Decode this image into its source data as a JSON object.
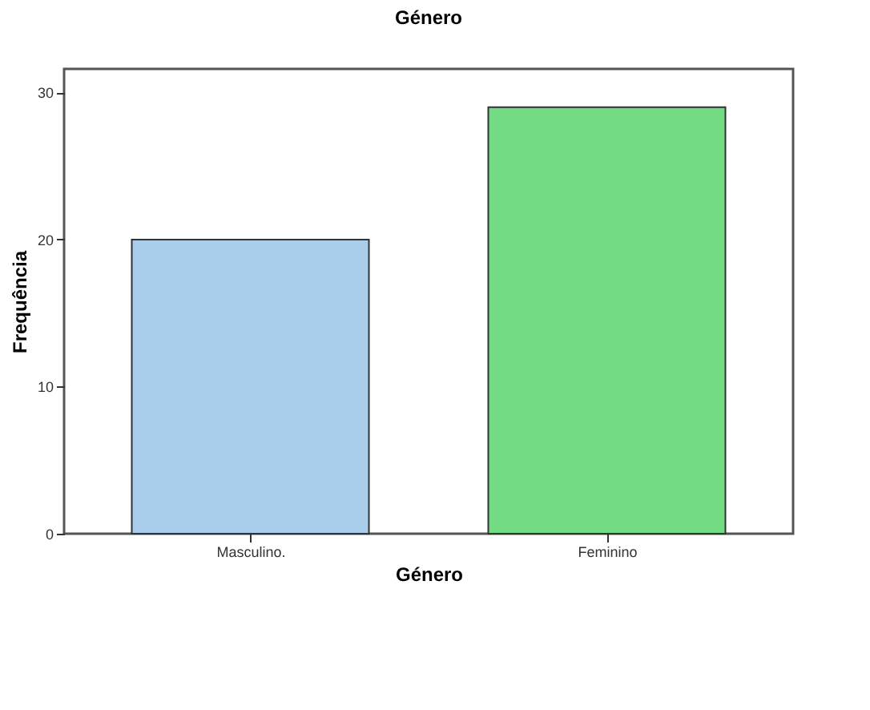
{
  "chart_data": {
    "type": "bar",
    "title": "Género",
    "xlabel": "Género",
    "ylabel": "Frequência",
    "categories": [
      "Masculino.",
      "Feminino"
    ],
    "values": [
      20,
      29
    ],
    "colors": [
      "#abcdec",
      "#72db84"
    ],
    "ylim": [
      0,
      31.6
    ],
    "yticks": [
      0,
      10,
      20,
      30
    ],
    "grid": false,
    "legend": false
  }
}
